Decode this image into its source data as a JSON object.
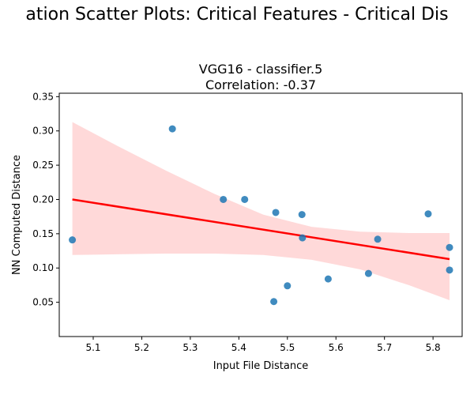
{
  "chart_data": {
    "type": "scatter",
    "suptitle": "ation Scatter Plots: Critical Features - Critical Dis",
    "title_line1": "VGG16 - classifier.5",
    "title_line2": "Correlation: -0.37",
    "xlabel": "Input File Distance",
    "ylabel": "NN Computed Distance",
    "xlim": [
      5.03,
      5.86
    ],
    "ylim": [
      0.0,
      0.355
    ],
    "xticks": [
      "5.1",
      "5.2",
      "5.3",
      "5.4",
      "5.5",
      "5.6",
      "5.7",
      "5.8"
    ],
    "yticks": [
      "0.05",
      "0.10",
      "0.15",
      "0.20",
      "0.25",
      "0.30",
      "0.35"
    ],
    "grid": false,
    "points": [
      {
        "x": 5.057,
        "y": 0.141
      },
      {
        "x": 5.263,
        "y": 0.303
      },
      {
        "x": 5.368,
        "y": 0.2
      },
      {
        "x": 5.412,
        "y": 0.2
      },
      {
        "x": 5.472,
        "y": 0.051
      },
      {
        "x": 5.476,
        "y": 0.181
      },
      {
        "x": 5.5,
        "y": 0.074
      },
      {
        "x": 5.53,
        "y": 0.178
      },
      {
        "x": 5.531,
        "y": 0.144
      },
      {
        "x": 5.584,
        "y": 0.084
      },
      {
        "x": 5.667,
        "y": 0.092
      },
      {
        "x": 5.686,
        "y": 0.142
      },
      {
        "x": 5.79,
        "y": 0.179
      },
      {
        "x": 5.834,
        "y": 0.13
      },
      {
        "x": 5.834,
        "y": 0.097
      }
    ],
    "regression": {
      "x": [
        5.057,
        5.834
      ],
      "y": [
        0.2,
        0.113
      ]
    },
    "confidence_band": {
      "x": [
        5.057,
        5.15,
        5.25,
        5.35,
        5.45,
        5.55,
        5.65,
        5.75,
        5.834
      ],
      "lower": [
        0.119,
        0.12,
        0.121,
        0.121,
        0.119,
        0.112,
        0.098,
        0.075,
        0.053
      ],
      "upper": [
        0.313,
        0.278,
        0.242,
        0.208,
        0.178,
        0.16,
        0.153,
        0.151,
        0.151
      ]
    },
    "colors": {
      "points": "#1f77b4",
      "regression": "#ff0000",
      "band": "#ffcccc"
    }
  }
}
